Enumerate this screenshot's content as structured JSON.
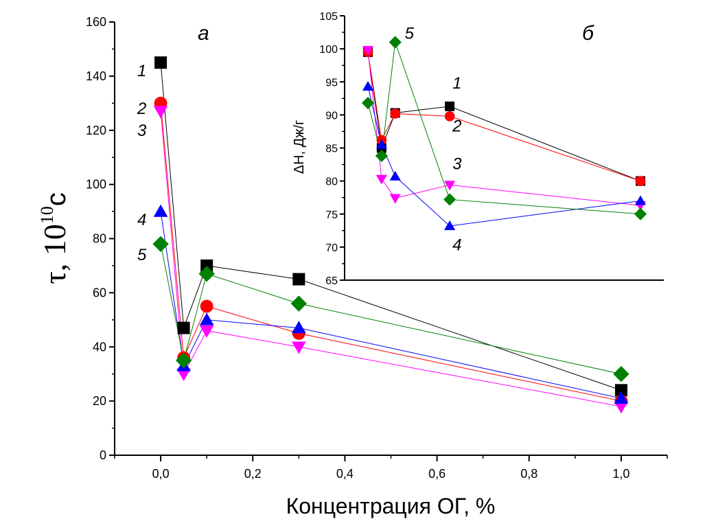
{
  "chart_data": [
    {
      "id": "main",
      "type": "line",
      "panel_label": "а",
      "xlabel": "Концентрация ОГ, %",
      "ylabel_base": "τ, 10",
      "ylabel_exp": "10",
      "ylabel_unit": "c",
      "xlim": [
        -0.1,
        1.1
      ],
      "ylim": [
        0,
        160
      ],
      "xticks": [
        0.0,
        0.2,
        0.4,
        0.6,
        0.8,
        1.0
      ],
      "xtick_labels": [
        "0,0",
        "0,2",
        "0,4",
        "0,6",
        "0,8",
        "1,0"
      ],
      "yticks": [
        0,
        20,
        40,
        60,
        80,
        100,
        120,
        140,
        160
      ],
      "ytick_labels": [
        "0",
        "20",
        "40",
        "60",
        "80",
        "100",
        "120",
        "140",
        "160"
      ],
      "series": [
        {
          "name": "1",
          "marker": "square",
          "color": "#000000",
          "x": [
            0.0,
            0.05,
            0.1,
            0.3,
            1.0
          ],
          "values": [
            145,
            47,
            70,
            65,
            24
          ]
        },
        {
          "name": "2",
          "marker": "circle",
          "color": "#ff0000",
          "x": [
            0.0,
            0.05,
            0.1,
            0.3,
            1.0
          ],
          "values": [
            130,
            36,
            55,
            45,
            20
          ]
        },
        {
          "name": "3",
          "marker": "triangle-down",
          "color": "#ff00ff",
          "x": [
            0.0,
            0.05,
            0.1,
            0.3,
            1.0
          ],
          "values": [
            127,
            30,
            46,
            40,
            18
          ]
        },
        {
          "name": "4",
          "marker": "triangle-up",
          "color": "#0000ff",
          "x": [
            0.0,
            0.05,
            0.1,
            0.3,
            1.0
          ],
          "values": [
            90,
            33,
            50,
            47,
            21
          ]
        },
        {
          "name": "5",
          "marker": "diamond",
          "color": "#008000",
          "x": [
            0.0,
            0.05,
            0.1,
            0.3,
            1.0
          ],
          "values": [
            78,
            35,
            67,
            56,
            30
          ]
        }
      ],
      "series_labels": [
        {
          "text": "1",
          "x": -0.01,
          "y": 142
        },
        {
          "text": "2",
          "x": -0.01,
          "y": 128
        },
        {
          "text": "3",
          "x": -0.01,
          "y": 120
        },
        {
          "text": "4",
          "x": -0.01,
          "y": 87
        },
        {
          "text": "5",
          "x": -0.01,
          "y": 74
        }
      ]
    },
    {
      "id": "inset",
      "type": "line",
      "panel_label": "б",
      "xlabel": "",
      "ylabel": "ΔH, Дж/г",
      "ylim": [
        65,
        105
      ],
      "yticks": [
        65,
        70,
        75,
        80,
        85,
        90,
        95,
        100,
        105
      ],
      "ytick_labels": [
        "65",
        "70",
        "75",
        "80",
        "85",
        "90",
        "95",
        "100",
        "105"
      ],
      "series": [
        {
          "name": "1",
          "marker": "square",
          "color": "#000000",
          "x": [
            0.0,
            0.05,
            0.1,
            0.3,
            1.0
          ],
          "values": [
            99.5,
            85,
            90.3,
            91.3,
            80
          ]
        },
        {
          "name": "2",
          "marker": "circle",
          "color": "#ff0000",
          "x": [
            0.0,
            0.05,
            0.1,
            0.3,
            1.0
          ],
          "values": [
            99.5,
            86.2,
            90.2,
            89.8,
            80
          ]
        },
        {
          "name": "3",
          "marker": "triangle-down",
          "color": "#ff00ff",
          "x": [
            0.0,
            0.05,
            0.1,
            0.3,
            1.0
          ],
          "values": [
            99.8,
            80.3,
            77.4,
            79.4,
            76.3
          ]
        },
        {
          "name": "4",
          "marker": "triangle-up",
          "color": "#0000ff",
          "x": [
            0.0,
            0.05,
            0.1,
            0.3,
            1.0
          ],
          "values": [
            94.3,
            85.5,
            80.7,
            73.2,
            77
          ]
        },
        {
          "name": "5",
          "marker": "diamond",
          "color": "#008000",
          "x": [
            0.0,
            0.05,
            0.1,
            0.3,
            1.0
          ],
          "values": [
            91.8,
            83.8,
            101,
            77.2,
            75
          ]
        }
      ],
      "series_labels": [
        {
          "text": "5",
          "x": 0.135,
          "y": 101.5
        },
        {
          "text": "1",
          "x": 0.31,
          "y": 94
        },
        {
          "text": "2",
          "x": 0.31,
          "y": 87.5
        },
        {
          "text": "3",
          "x": 0.31,
          "y": 81.8
        },
        {
          "text": "4",
          "x": 0.31,
          "y": 69.5
        }
      ]
    }
  ]
}
